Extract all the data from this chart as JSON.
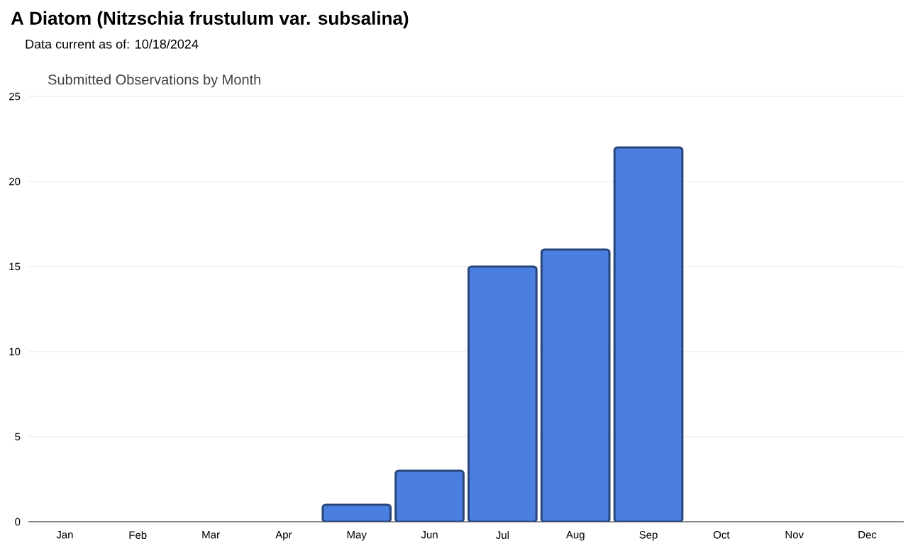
{
  "chart_data": {
    "type": "bar",
    "title": "A Diatom (Nitzschia frustulum var. subsalina)",
    "subtitle": "Data current as of: 10/18/2024",
    "annotations": [
      "Submitted Observations by Month"
    ],
    "categories": [
      "Jan",
      "Feb",
      "Mar",
      "Apr",
      "May",
      "Jun",
      "Jul",
      "Aug",
      "Sep",
      "Oct",
      "Nov",
      "Dec"
    ],
    "values": [
      0,
      0,
      0,
      0,
      1,
      3,
      15,
      16,
      22,
      0,
      0,
      0
    ],
    "color": "#4a7fe0",
    "ylim": [
      0,
      25
    ],
    "yticks": [
      0,
      5,
      10,
      15,
      20,
      25
    ],
    "grid": "y"
  }
}
